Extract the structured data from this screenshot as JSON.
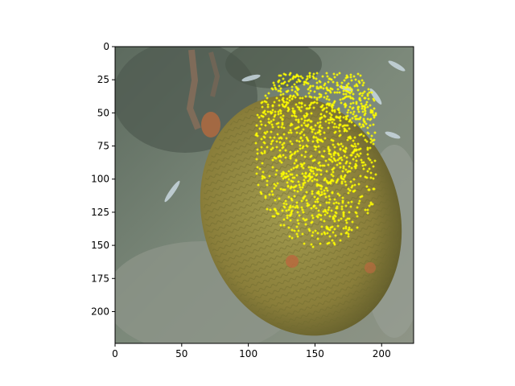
{
  "figure": {
    "background": "#ffffff",
    "image_description": "underwater photo of a brain coral on a sandy reef, small fish nearby",
    "overlay_marker_color": "#ffff00",
    "overlay_marker_shape": "plus"
  },
  "chart_data": {
    "type": "image-with-scatter-overlay",
    "title": "",
    "xlabel": "",
    "ylabel": "",
    "xlim": [
      0,
      224
    ],
    "ylim": [
      224,
      0
    ],
    "x_ticks": [
      "0",
      "50",
      "100",
      "150",
      "200"
    ],
    "y_ticks": [
      "0",
      "25",
      "50",
      "75",
      "100",
      "125",
      "150",
      "175",
      "200"
    ],
    "grid": false,
    "overlay_region": {
      "x_range": [
        95,
        196
      ],
      "y_range": [
        20,
        163
      ],
      "approx_point_count": 1200
    }
  },
  "palette": {
    "water_dark": "#5f6b60",
    "water_light": "#7e8a7c",
    "sand": "#8c9384",
    "coral_body": "#8a7e3a",
    "coral_shadow": "#5e5a2a",
    "coral_highlight": "#9e9a4c",
    "spot": "#b86a3e",
    "fish": "#c9d8e0"
  }
}
